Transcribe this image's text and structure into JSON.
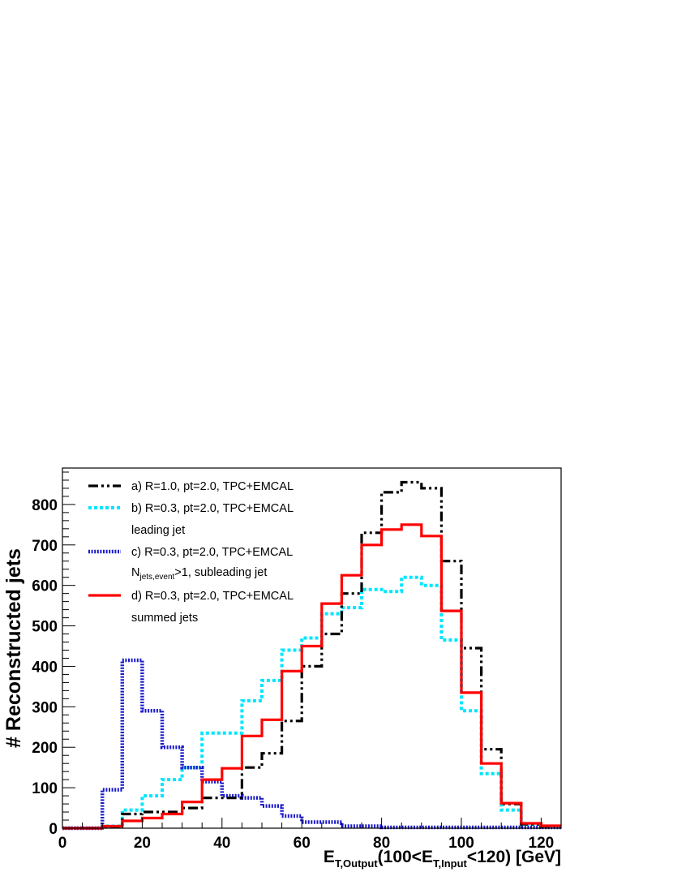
{
  "chart_data": {
    "type": "step-histogram",
    "title": "",
    "xlabel": {
      "main": "E",
      "main_sub": "T,Output",
      "mid": "(100<E",
      "mid_sub": "T,Input",
      "tail": "<120) [GeV]"
    },
    "ylabel": "# Reconstructed jets",
    "xlim": [
      0,
      125
    ],
    "ylim": [
      0,
      890
    ],
    "x_ticks": [
      0,
      20,
      40,
      60,
      80,
      100,
      120
    ],
    "y_ticks": [
      0,
      100,
      200,
      300,
      400,
      500,
      600,
      700,
      800
    ],
    "bin_width": 5,
    "bin_edges_start": 0,
    "legend_position": "top-left",
    "series": [
      {
        "name": "a) R=1.0, pt=2.0, TPC+EMCAL",
        "color": "#000000",
        "style": "dash-dot",
        "values": [
          0,
          0,
          3,
          35,
          40,
          40,
          50,
          75,
          75,
          150,
          185,
          265,
          400,
          480,
          580,
          730,
          830,
          855,
          840,
          660,
          445,
          195,
          60,
          10,
          5
        ]
      },
      {
        "name": "b) R=0.3, pt=2.0, TPC+EMCAL",
        "name_line2": "leading jet",
        "color": "#00e5ff",
        "style": "dotted",
        "values": [
          0,
          0,
          5,
          45,
          80,
          120,
          150,
          235,
          235,
          315,
          365,
          440,
          470,
          530,
          545,
          590,
          585,
          620,
          600,
          465,
          290,
          135,
          45,
          10,
          5
        ]
      },
      {
        "name": "c) R=0.3, pt=2.0, TPC+EMCAL",
        "name_line2_pre": "N",
        "name_line2_sub": "jets,event",
        "name_line2_post": ">1, subleading jet",
        "color": "#1a1acc",
        "style": "dense-dashed",
        "values": [
          0,
          0,
          95,
          415,
          290,
          200,
          150,
          115,
          80,
          75,
          55,
          30,
          15,
          15,
          5,
          5,
          2,
          2,
          2,
          2,
          2,
          2,
          2,
          2,
          2
        ]
      },
      {
        "name": "d) R=0.3, pt=2.0, TPC+EMCAL",
        "name_line2": "summed jets",
        "color": "#ff0000",
        "style": "solid",
        "values": [
          0,
          0,
          5,
          18,
          25,
          35,
          65,
          120,
          148,
          228,
          268,
          388,
          450,
          555,
          625,
          700,
          738,
          750,
          722,
          537,
          335,
          160,
          62,
          12,
          6
        ]
      }
    ]
  }
}
